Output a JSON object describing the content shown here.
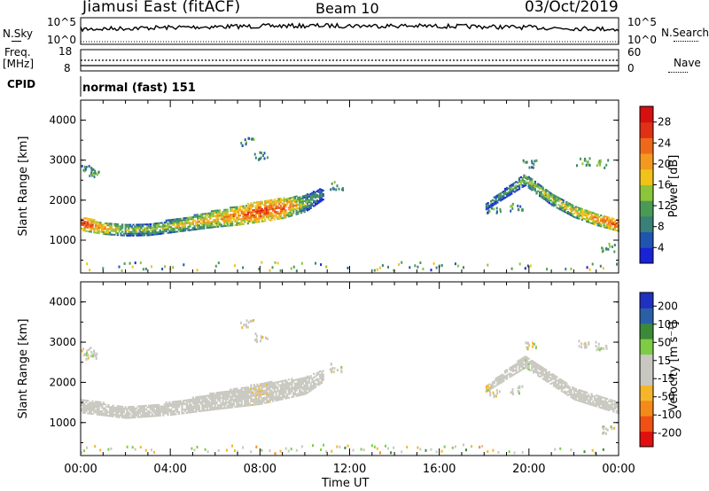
{
  "header": {
    "station": "Jiamusi East (fitACF)",
    "beam": "Beam 10",
    "date": "03/Oct/2019"
  },
  "top_panels": {
    "nsky_label": "N.Sky",
    "nsky_ticks": [
      "10^5",
      "10^0"
    ],
    "nsearch_label": "N.Search",
    "nsearch_ticks": [
      "10^5",
      "10^0"
    ],
    "freq_label": "Freq.",
    "freq_unit": "[MHz]",
    "freq_ticks": [
      "18",
      "8"
    ],
    "nave_label": "Nave",
    "nave_ticks": [
      "60",
      "0"
    ],
    "cpid_label": "CPID",
    "cpid_value": "normal (fast) 151"
  },
  "colors": {
    "power_scale": [
      "#1a22d8",
      "#1f54b0",
      "#3a7f78",
      "#4a9a55",
      "#8cc43a",
      "#f0c21a",
      "#f39a1e",
      "#ee6a1a",
      "#e03016",
      "#d41010"
    ],
    "velocity_scale": [
      "#e01010",
      "#f05014",
      "#f38a1a",
      "#f5b52a",
      "#c8c8c0",
      "#c8c8c0",
      "#7ecb45",
      "#3a8a3a",
      "#2a5fa8",
      "#2030c0"
    ],
    "ground_scatter": "#c8c8c0"
  },
  "chart_data": [
    {
      "type": "heatmap",
      "title": "",
      "xlabel": "Time UT",
      "ylabel": "Slant Range [km]",
      "x_ticks": [
        "00:00",
        "04:00",
        "08:00",
        "12:00",
        "16:00",
        "20:00",
        "00:00"
      ],
      "y_ticks": [
        "1000",
        "2000",
        "3000",
        "4000"
      ],
      "xlim_hours": [
        0,
        24
      ],
      "ylim_km": [
        180,
        4500
      ],
      "colorbar": {
        "label": "Power [dB]",
        "ticks": [
          "4",
          "8",
          "12",
          "16",
          "20",
          "24",
          "28"
        ],
        "range": [
          0,
          30
        ]
      },
      "echo_band": [
        {
          "t": 0.0,
          "center_km": 1400,
          "width_km": 350,
          "power_db": 26
        },
        {
          "t": 1.0,
          "center_km": 1280,
          "width_km": 300,
          "power_db": 20
        },
        {
          "t": 2.0,
          "center_km": 1230,
          "width_km": 280,
          "power_db": 14
        },
        {
          "t": 3.0,
          "center_km": 1250,
          "width_km": 300,
          "power_db": 14
        },
        {
          "t": 4.0,
          "center_km": 1330,
          "width_km": 320,
          "power_db": 16
        },
        {
          "t": 5.0,
          "center_km": 1420,
          "width_km": 360,
          "power_db": 18
        },
        {
          "t": 6.0,
          "center_km": 1520,
          "width_km": 420,
          "power_db": 20
        },
        {
          "t": 7.0,
          "center_km": 1600,
          "width_km": 480,
          "power_db": 22
        },
        {
          "t": 8.0,
          "center_km": 1700,
          "width_km": 520,
          "power_db": 25
        },
        {
          "t": 9.0,
          "center_km": 1780,
          "width_km": 500,
          "power_db": 24
        },
        {
          "t": 10.0,
          "center_km": 1900,
          "width_km": 420,
          "power_db": 14
        },
        {
          "t": 10.8,
          "center_km": 2150,
          "width_km": 300,
          "power_db": 8
        },
        {
          "t": 18.0,
          "center_km": 1800,
          "width_km": 150,
          "power_db": 10
        },
        {
          "t": 19.8,
          "center_km": 2500,
          "width_km": 300,
          "power_db": 14
        },
        {
          "t": 21.0,
          "center_km": 2000,
          "width_km": 300,
          "power_db": 16
        },
        {
          "t": 22.0,
          "center_km": 1700,
          "width_km": 300,
          "power_db": 18
        },
        {
          "t": 23.0,
          "center_km": 1500,
          "width_km": 300,
          "power_db": 22
        },
        {
          "t": 24.0,
          "center_km": 1350,
          "width_km": 300,
          "power_db": 24
        }
      ]
    },
    {
      "type": "heatmap",
      "title": "",
      "xlabel": "Time UT",
      "ylabel": "Slant Range [km]",
      "x_ticks": [
        "00:00",
        "04:00",
        "08:00",
        "12:00",
        "16:00",
        "20:00",
        "00:00"
      ],
      "y_ticks": [
        "1000",
        "2000",
        "3000",
        "4000"
      ],
      "xlim_hours": [
        0,
        24
      ],
      "ylim_km": [
        180,
        4500
      ],
      "colorbar": {
        "label": "Velocity [m s⁻¹]",
        "ticks": [
          "200",
          "100",
          "50",
          "15",
          "-15",
          "-50",
          "-100",
          "-200"
        ],
        "range": [
          -250,
          250
        ]
      },
      "echo_band": [
        {
          "t": 0.0,
          "center_km": 1400,
          "width_km": 350,
          "velocity": 0
        },
        {
          "t": 2.0,
          "center_km": 1230,
          "width_km": 280,
          "velocity": 0
        },
        {
          "t": 4.0,
          "center_km": 1330,
          "width_km": 320,
          "velocity": 0
        },
        {
          "t": 6.0,
          "center_km": 1520,
          "width_km": 420,
          "velocity": -20
        },
        {
          "t": 8.0,
          "center_km": 1700,
          "width_km": 520,
          "velocity": -40
        },
        {
          "t": 10.0,
          "center_km": 1900,
          "width_km": 420,
          "velocity": -20
        },
        {
          "t": 10.8,
          "center_km": 2150,
          "width_km": 300,
          "velocity": 0
        },
        {
          "t": 18.0,
          "center_km": 1800,
          "width_km": 150,
          "velocity": -60
        },
        {
          "t": 19.8,
          "center_km": 2500,
          "width_km": 300,
          "velocity": 40
        },
        {
          "t": 22.0,
          "center_km": 1700,
          "width_km": 300,
          "velocity": 0
        },
        {
          "t": 24.0,
          "center_km": 1350,
          "width_km": 300,
          "velocity": 0
        }
      ]
    }
  ]
}
